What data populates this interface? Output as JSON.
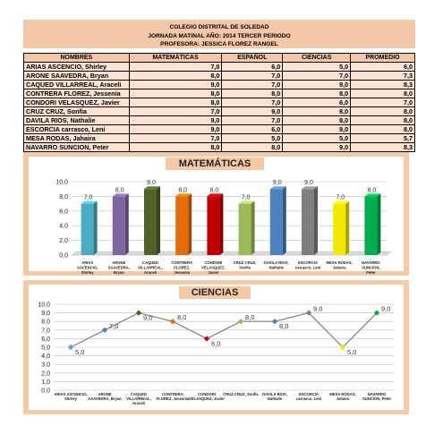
{
  "header": {
    "line1": "COLEGIO DISTRITAL DE SOLEDAD",
    "line2": "JORNADA MATINAL   AÑO: 2014    TERCER PERIODO",
    "line3": "PROFESORA: JESSICA FLOREZ RANGEL"
  },
  "table": {
    "columns": [
      "NOMBRES",
      "MATEMÁTICAS",
      "ESPAÑOL",
      "CIENCIAS",
      "PROMEDIO"
    ],
    "rows": [
      [
        "ARIAS ASCENCIO, Shirley",
        "7,0",
        "6,0",
        "5,0",
        "6,0"
      ],
      [
        "ARONE SAAVEDRA, Bryan",
        "8,0",
        "7,0",
        "7,0",
        "7,3"
      ],
      [
        "CAQUED VILLARREAL, Araceli",
        "9,0",
        "7,0",
        "9,0",
        "8,3"
      ],
      [
        "CONTRERA FLOREZ, Jessenia",
        "8,0",
        "8,0",
        "8,0",
        "8,0"
      ],
      [
        "CONDORI VELASQUEZ, Javier",
        "8,0",
        "7,0",
        "6,0",
        "7,0"
      ],
      [
        "CRUZ CRUZ, Sonfia",
        "7,0",
        "9,0",
        "8,0",
        "8,0"
      ],
      [
        "DAVILA RIOS, Nathalie",
        "9,0",
        "7,0",
        "8,0",
        "8,0"
      ],
      [
        "ESCORCIA carrasco, Leni",
        "9,0",
        "6,0",
        "9,0",
        "8,0"
      ],
      [
        "MESA RODAS, Jahaira",
        "7,0",
        "5,0",
        "5,0",
        "5,7"
      ],
      [
        "NAVARRO SUNCION, Peter",
        "8,0",
        "8,0",
        "9,0",
        "8,3"
      ]
    ]
  },
  "chart_data": [
    {
      "type": "bar",
      "title": "MATEMÁTICAS",
      "categories": [
        [
          "ARIAS",
          "ASCENCIO,",
          "Shirley"
        ],
        [
          "ARONE",
          "SAAVEDRA,",
          "Bryan"
        ],
        [
          "CAQUED",
          "VILLARREAL,",
          "Araceli"
        ],
        [
          "CONTRERA",
          "FLOREZ,",
          "Jessenia"
        ],
        [
          "CONDORI",
          "VELASQUEZ,",
          "Javier"
        ],
        [
          "CRUZ CRUZ,",
          "Sonfia"
        ],
        [
          "DAVILA RIOS,",
          "Nathalie"
        ],
        [
          "ESCORCIA",
          "carrasco, Leni"
        ],
        [
          "MESA RODAS,",
          "Jahaira"
        ],
        [
          "NAVARRO",
          "SUNCION,",
          "Peter"
        ]
      ],
      "values": [
        7.0,
        8.0,
        9.0,
        8.0,
        8.0,
        7.0,
        9.0,
        9.0,
        7.0,
        8.0
      ],
      "value_labels": [
        "7,0",
        "8,0",
        "9,0",
        "8,0",
        "8,0",
        "7,0",
        "9,0",
        "9,0",
        "7,0",
        "8,0"
      ],
      "bar_colors": [
        "#4bacc6",
        "#8064a2",
        "#4f6228",
        "#e46c0a",
        "#c00000",
        "#9bbb59",
        "#4f81bd",
        "#7f7f7f",
        "#f2e800",
        "#00b050"
      ],
      "yticks": [
        "0,0",
        "2,0",
        "4,0",
        "6,0",
        "8,0",
        "10,0"
      ],
      "ylim": [
        0,
        10
      ],
      "grid": true,
      "legend": "none"
    },
    {
      "type": "line",
      "title": "CIENCIAS",
      "categories": [
        [
          "ARIAS ASCENCIO,",
          "Shirley"
        ],
        [
          "ARONE",
          "SAAVEDRA, Bryan"
        ],
        [
          "CAQUED",
          "VILLARREAL,",
          "Araceli"
        ],
        [
          "CONTRERA",
          "FLOREZ, Jessenia"
        ],
        [
          "CONDORI",
          "VELASQUEZ, Javier"
        ],
        [
          "CRUZ CRUZ, Sonfia"
        ],
        [
          "DAVILA RIOS,",
          "Nathalie"
        ],
        [
          "ESCORCIA",
          "carrasco, Leni"
        ],
        [
          "MESA RODAS,",
          "Jahaira"
        ],
        [
          "NAVARRO",
          "SUNCION, Peter"
        ]
      ],
      "values": [
        5.0,
        7.0,
        9.0,
        8.0,
        6.0,
        8.0,
        8.0,
        9.0,
        5.0,
        9.0
      ],
      "value_labels": [
        "5,0",
        "7,0",
        "9,0",
        "8,0",
        "6,0",
        "8,0",
        "8,0",
        "9,0",
        "5,0",
        "9,0"
      ],
      "marker_colors": [
        "#4bacc6",
        "#4f81bd",
        "#4f6228",
        "#e46c0a",
        "#c00000",
        "#9bbb59",
        "#4f81bd",
        "#7f7f7f",
        "#f2e800",
        "#00b050"
      ],
      "line_color": "#7f7f7f",
      "yticks": [
        "0,0",
        "1,0",
        "2,0",
        "3,0",
        "4,0",
        "5,0",
        "6,0",
        "7,0",
        "8,0",
        "9,0",
        "10,0"
      ],
      "ylim": [
        0,
        10
      ],
      "grid": true,
      "legend": "none"
    }
  ]
}
